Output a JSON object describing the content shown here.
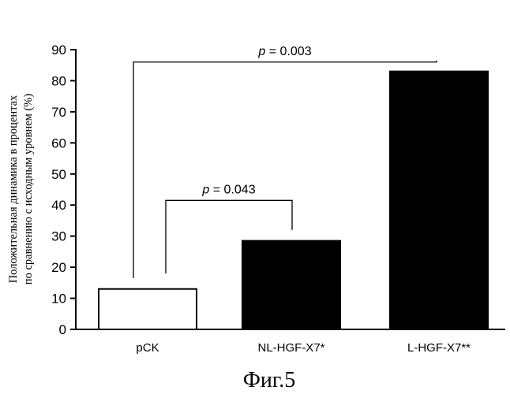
{
  "chart_data": {
    "type": "bar",
    "ylabel": [
      "Положительная динамика в процентах",
      "по сравнению с исходным уровнем (%)"
    ],
    "categories": [
      "pCK",
      "NL-HGF-X7*",
      "L-HGF-X7**"
    ],
    "values": [
      13,
      28.5,
      83
    ],
    "bar_fills": [
      "#ffffff",
      "#000000",
      "#000000"
    ],
    "ylim": [
      0,
      90
    ],
    "yticks": [
      "0",
      "10",
      "20",
      "30",
      "40",
      "50",
      "60",
      "70",
      "80",
      "90"
    ],
    "grid": false,
    "annotations": [
      {
        "from": 0,
        "to": 2,
        "p_symbol": "p",
        "p_rest": " = 0.003"
      },
      {
        "from": 0,
        "to": 1,
        "p_symbol": "p",
        "p_rest": " = 0.043"
      }
    ]
  },
  "caption": "Фиг.5"
}
